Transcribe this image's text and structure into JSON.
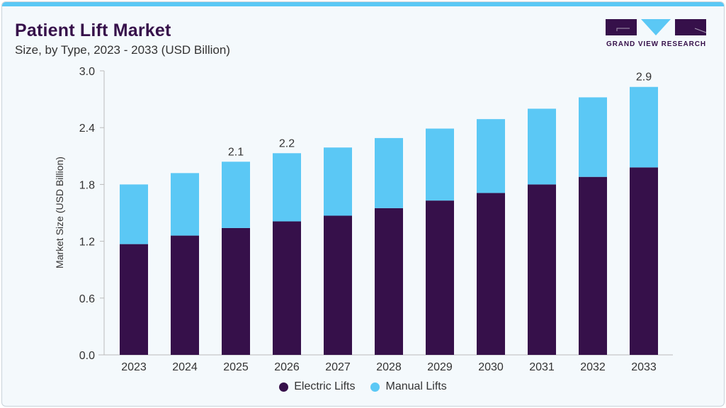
{
  "header": {
    "title": "Patient Lift Market",
    "subtitle": "Size, by Type, 2023 - 2033 (USD Billion)"
  },
  "logo": {
    "text": "GRAND VIEW RESEARCH"
  },
  "colors": {
    "electric": "#36104a",
    "manual": "#5bc8f5",
    "accent": "#5bc8f5"
  },
  "chart_data": {
    "type": "bar",
    "stacked": true,
    "categories": [
      "2023",
      "2024",
      "2025",
      "2026",
      "2027",
      "2028",
      "2029",
      "2030",
      "2031",
      "2032",
      "2033"
    ],
    "series": [
      {
        "name": "Electric Lifts",
        "values": [
          1.17,
          1.26,
          1.34,
          1.41,
          1.47,
          1.55,
          1.63,
          1.71,
          1.8,
          1.88,
          1.98
        ]
      },
      {
        "name": "Manual Lifts",
        "values": [
          0.63,
          0.66,
          0.7,
          0.72,
          0.72,
          0.74,
          0.76,
          0.78,
          0.8,
          0.84,
          0.85
        ]
      }
    ],
    "data_labels": [
      {
        "category": "2025",
        "text": "2.1"
      },
      {
        "category": "2026",
        "text": "2.2"
      },
      {
        "category": "2033",
        "text": "2.9"
      }
    ],
    "ylabel": "Market Size (USD Billion)",
    "xlabel": "",
    "ylim": [
      0,
      3.0
    ],
    "yticks": [
      "0.0",
      "0.6",
      "1.2",
      "1.8",
      "2.4",
      "3.0"
    ],
    "grid": false,
    "legend": "bottom-center"
  }
}
